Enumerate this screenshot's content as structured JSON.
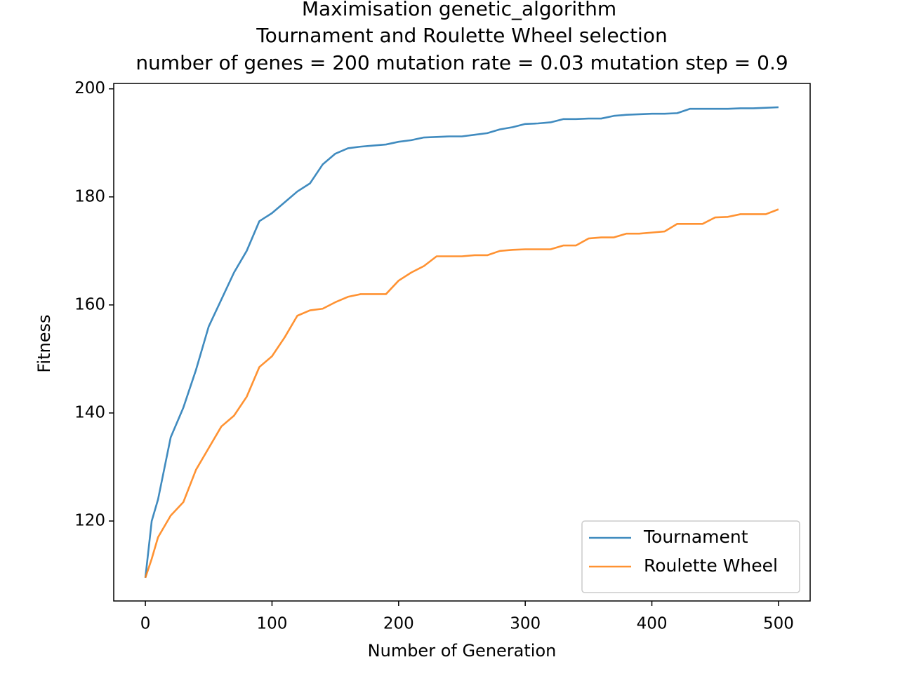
{
  "chart_data": {
    "type": "line",
    "title": [
      "Maximisation genetic_algorithm",
      "Tournament and Roulette Wheel selection",
      "number of genes = 200 mutation rate = 0.03 mutation step = 0.9"
    ],
    "x_label": "Number of Generation",
    "y_label": "Fitness",
    "x": [
      0,
      5,
      10,
      20,
      30,
      40,
      50,
      60,
      70,
      80,
      90,
      100,
      110,
      120,
      130,
      140,
      150,
      160,
      170,
      180,
      190,
      200,
      210,
      220,
      230,
      240,
      250,
      260,
      270,
      280,
      290,
      300,
      310,
      320,
      330,
      340,
      350,
      360,
      370,
      380,
      390,
      400,
      410,
      420,
      430,
      440,
      450,
      460,
      470,
      480,
      490,
      500
    ],
    "series": [
      {
        "name": "Tournament",
        "color": "#1f77b4",
        "values": [
          109.5,
          120,
          124,
          135.5,
          141,
          148,
          156,
          161,
          166,
          170,
          175.5,
          177,
          179,
          181,
          182.5,
          186,
          188,
          189,
          189.3,
          189.5,
          189.7,
          190.2,
          190.5,
          191,
          191.1,
          191.2,
          191.2,
          191.5,
          191.8,
          192.5,
          192.9,
          193.5,
          193.6,
          193.8,
          194.4,
          194.4,
          194.5,
          194.5,
          195,
          195.2,
          195.3,
          195.4,
          195.4,
          195.5,
          196.3,
          196.3,
          196.3,
          196.3,
          196.4,
          196.4,
          196.5,
          196.6
        ]
      },
      {
        "name": "Roulette Wheel",
        "color": "#ff7f0e",
        "values": [
          109.5,
          113,
          117,
          121,
          123.5,
          129.5,
          133.5,
          137.5,
          139.5,
          143,
          148.5,
          150.5,
          154,
          158,
          159,
          159.3,
          160.5,
          161.5,
          162,
          162,
          162,
          164.5,
          166,
          167.2,
          169,
          169,
          169,
          169.2,
          169.2,
          170,
          170.2,
          170.3,
          170.3,
          170.3,
          171,
          171,
          172.3,
          172.5,
          172.5,
          173.2,
          173.2,
          173.4,
          173.6,
          175,
          175,
          175,
          176.2,
          176.3,
          176.8,
          176.8,
          176.8,
          177.7
        ]
      }
    ],
    "xlim": [
      -25,
      525
    ],
    "ylim": [
      105.2,
      201
    ],
    "xticks": [
      0,
      100,
      200,
      300,
      400,
      500
    ],
    "yticks": [
      120,
      140,
      160,
      180,
      200
    ],
    "legend": "lower right"
  }
}
